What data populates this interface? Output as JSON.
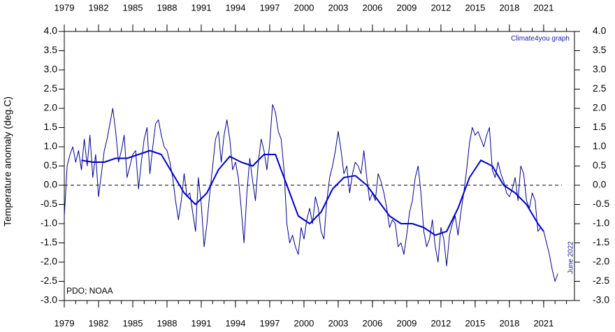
{
  "chart_data": {
    "type": "line",
    "y_label": "Temperature anomaly (deg.C)",
    "credit": "Climate4you graph",
    "source": "PDO; NOAA",
    "date_note": "June 2022",
    "xlim": [
      1979,
      2023.7
    ],
    "ylim": [
      -3,
      4
    ],
    "xticks": [
      1979,
      1982,
      1985,
      1988,
      1991,
      1994,
      1997,
      2000,
      2003,
      2006,
      2009,
      2012,
      2015,
      2018,
      2021
    ],
    "xticks_minor": [
      1979,
      1980,
      1981,
      1982,
      1983,
      1984,
      1985,
      1986,
      1987,
      1988,
      1989,
      1990,
      1991,
      1992,
      1993,
      1994,
      1995,
      1996,
      1997,
      1998,
      1999,
      2000,
      2001,
      2002,
      2003,
      2004,
      2005,
      2006,
      2007,
      2008,
      2009,
      2010,
      2011,
      2012,
      2013,
      2014,
      2015,
      2016,
      2017,
      2018,
      2019,
      2020,
      2021,
      2022,
      2023
    ],
    "yticks": [
      {
        "value": 4,
        "label": "4.0"
      },
      {
        "value": 3.5,
        "label": "3.5"
      },
      {
        "value": 3,
        "label": "3.0"
      },
      {
        "value": 2.5,
        "label": "2.5"
      },
      {
        "value": 2,
        "label": "2.0"
      },
      {
        "value": 1.5,
        "label": "1.5"
      },
      {
        "value": 1,
        "label": "1.0"
      },
      {
        "value": 0.5,
        "label": "0.5"
      },
      {
        "value": 0,
        "label": "0.0"
      },
      {
        "value": -0.5,
        "label": "-0.5"
      },
      {
        "value": -1,
        "label": "-1.0"
      },
      {
        "value": -1.5,
        "label": "-1.5"
      },
      {
        "value": -2,
        "label": "-2.0"
      },
      {
        "value": -2.5,
        "label": "-2.5"
      },
      {
        "value": -3,
        "label": "-3.0"
      }
    ],
    "reference_line": 0,
    "series": [
      {
        "color": "#00008b",
        "width": 1,
        "x": [
          1979,
          1979.25,
          1979.5,
          1979.75,
          1980,
          1980.25,
          1980.5,
          1980.75,
          1981,
          1981.25,
          1981.5,
          1981.75,
          1982,
          1982.25,
          1982.5,
          1982.75,
          1983,
          1983.25,
          1983.5,
          1983.75,
          1984,
          1984.25,
          1984.5,
          1984.75,
          1985,
          1985.25,
          1985.5,
          1985.75,
          1986,
          1986.25,
          1986.5,
          1986.75,
          1987,
          1987.25,
          1987.5,
          1987.75,
          1988,
          1988.25,
          1988.5,
          1988.75,
          1989,
          1989.25,
          1989.5,
          1989.75,
          1990,
          1990.25,
          1990.5,
          1990.75,
          1991,
          1991.25,
          1991.5,
          1991.75,
          1992,
          1992.25,
          1992.5,
          1992.75,
          1993,
          1993.25,
          1993.5,
          1993.75,
          1994,
          1994.25,
          1994.5,
          1994.75,
          1995,
          1995.25,
          1995.5,
          1995.75,
          1996,
          1996.25,
          1996.5,
          1996.75,
          1997,
          1997.25,
          1997.5,
          1997.75,
          1998,
          1998.25,
          1998.5,
          1998.75,
          1999,
          1999.25,
          1999.5,
          1999.75,
          2000,
          2000.25,
          2000.5,
          2000.75,
          2001,
          2001.25,
          2001.5,
          2001.75,
          2002,
          2002.25,
          2002.5,
          2002.75,
          2003,
          2003.25,
          2003.5,
          2003.75,
          2004,
          2004.25,
          2004.5,
          2004.75,
          2005,
          2005.25,
          2005.5,
          2005.75,
          2006,
          2006.25,
          2006.5,
          2006.75,
          2007,
          2007.25,
          2007.5,
          2007.75,
          2008,
          2008.25,
          2008.5,
          2008.75,
          2009,
          2009.25,
          2009.5,
          2009.75,
          2010,
          2010.25,
          2010.5,
          2010.75,
          2011,
          2011.25,
          2011.5,
          2011.75,
          2012,
          2012.25,
          2012.5,
          2012.75,
          2013,
          2013.25,
          2013.5,
          2013.75,
          2014,
          2014.25,
          2014.5,
          2014.75,
          2015,
          2015.25,
          2015.5,
          2015.75,
          2016,
          2016.25,
          2016.5,
          2016.75,
          2017,
          2017.25,
          2017.5,
          2017.75,
          2018,
          2018.25,
          2018.5,
          2018.75,
          2019,
          2019.25,
          2019.5,
          2019.75,
          2020,
          2020.25,
          2020.5,
          2020.75,
          2021,
          2021.25,
          2021.5,
          2021.75,
          2022,
          2022.25
        ],
        "values": [
          -0.8,
          0.5,
          0.8,
          1.0,
          0.6,
          0.9,
          0.4,
          1.2,
          0.5,
          1.3,
          0.2,
          0.8,
          -0.3,
          0.3,
          0.9,
          1.2,
          1.6,
          2.0,
          1.4,
          0.6,
          0.9,
          1.3,
          0.2,
          0.5,
          0.8,
          0.9,
          -0.1,
          0.6,
          1.2,
          1.5,
          0.3,
          1.0,
          1.6,
          1.7,
          1.3,
          1.0,
          0.9,
          0.6,
          0.2,
          -0.4,
          -0.9,
          -0.4,
          0.3,
          -0.3,
          -0.2,
          -0.7,
          -1.2,
          0.2,
          -0.5,
          -1.6,
          -1.0,
          -0.2,
          0.5,
          1.2,
          1.4,
          0.6,
          1.3,
          1.7,
          1.2,
          0.4,
          0.6,
          0.2,
          -0.6,
          -1.5,
          -0.2,
          0.7,
          0.1,
          -0.4,
          0.6,
          1.2,
          0.9,
          0.4,
          1.1,
          2.1,
          1.9,
          1.4,
          1.2,
          0.4,
          -1.0,
          -1.5,
          -1.3,
          -1.6,
          -1.8,
          -1.1,
          -1.4,
          -0.9,
          -0.6,
          -1.0,
          -0.3,
          -0.6,
          -1.2,
          -1.4,
          -0.4,
          0.2,
          0.5,
          0.9,
          1.4,
          0.9,
          0.3,
          0.5,
          -0.2,
          0.3,
          0.6,
          0.5,
          0.3,
          0.9,
          0.2,
          -0.4,
          -0.2,
          -0.4,
          0.3,
          0.1,
          -0.2,
          -0.6,
          -1.1,
          -0.9,
          -1.0,
          -1.6,
          -1.5,
          -1.8,
          -1.3,
          -0.7,
          -0.4,
          0.2,
          0.5,
          -0.2,
          -1.2,
          -1.6,
          -1.4,
          -0.9,
          -1.6,
          -2.0,
          -1.1,
          -1.4,
          -2.1,
          -1.3,
          -1.0,
          -0.8,
          -1.3,
          -0.7,
          -0.2,
          0.4,
          1.1,
          1.5,
          1.3,
          1.4,
          1.2,
          1.0,
          1.3,
          1.5,
          0.4,
          0.2,
          0.6,
          0.3,
          0.1,
          -0.2,
          -0.3,
          -0.1,
          0.2,
          -0.4,
          0.5,
          0.3,
          -0.4,
          -0.6,
          -0.2,
          -0.4,
          -1.2,
          -1.1,
          -1.2,
          -1.5,
          -1.8,
          -2.2,
          -2.5,
          -2.3
        ]
      },
      {
        "color": "#0000cd",
        "width": 2,
        "x": [
          1980.5,
          1981.5,
          1982.5,
          1983.5,
          1984.5,
          1985.5,
          1986.5,
          1987.5,
          1988.5,
          1989.5,
          1990.5,
          1991.5,
          1992.5,
          1993.5,
          1994.5,
          1995.5,
          1996.5,
          1997.5,
          1998.5,
          1999.5,
          2000.5,
          2001.5,
          2002.5,
          2003.5,
          2004.5,
          2005.5,
          2006.5,
          2007.5,
          2008.5,
          2009.5,
          2010.5,
          2011.5,
          2012.5,
          2013.5,
          2014.5,
          2015.5,
          2016.5,
          2017.5,
          2018.5,
          2019.5,
          2020.5,
          2021
        ],
        "values": [
          0.65,
          0.6,
          0.6,
          0.7,
          0.7,
          0.8,
          0.9,
          0.8,
          0.3,
          -0.2,
          -0.5,
          -0.2,
          0.4,
          0.75,
          0.6,
          0.5,
          0.8,
          0.8,
          0.0,
          -0.8,
          -1.0,
          -0.7,
          -0.1,
          0.2,
          0.25,
          0.0,
          -0.4,
          -0.8,
          -1.0,
          -1.0,
          -1.1,
          -1.3,
          -1.2,
          -0.6,
          0.2,
          0.65,
          0.5,
          0.0,
          -0.2,
          -0.5,
          -1.0,
          -1.2
        ]
      }
    ]
  }
}
